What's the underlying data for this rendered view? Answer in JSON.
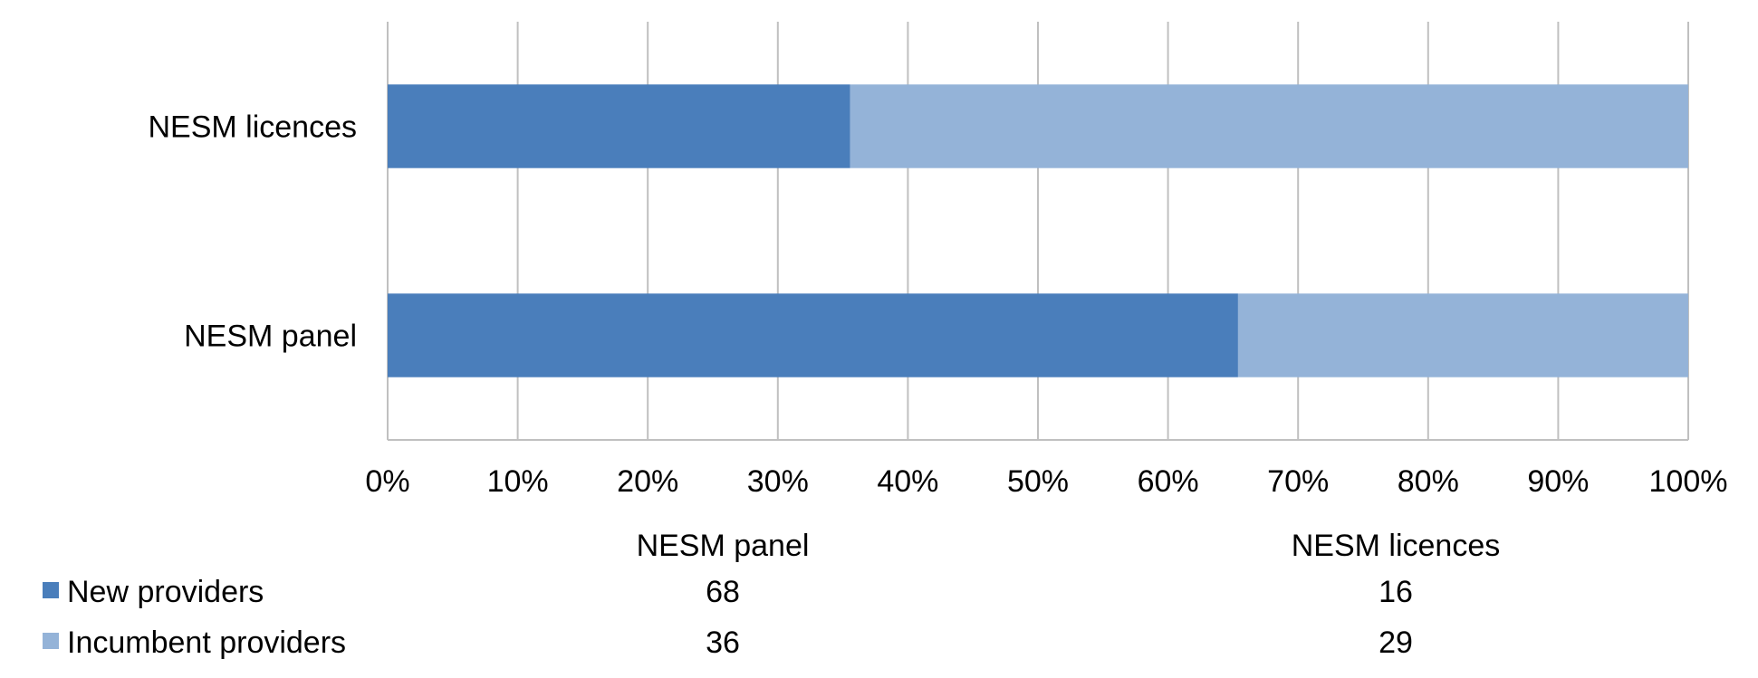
{
  "chart_data": {
    "type": "bar",
    "orientation": "horizontal",
    "stacking": "percent",
    "categories": [
      "NESM licences",
      "NESM panel"
    ],
    "series": [
      {
        "name": "New providers",
        "color": "#4a7ebb",
        "values_by_category": {
          "NESM panel": 68,
          "NESM licences": 16
        }
      },
      {
        "name": "Incumbent providers",
        "color": "#94b3d8",
        "values_by_category": {
          "NESM panel": 36,
          "NESM licences": 29
        }
      }
    ],
    "xaxis": {
      "ticks": [
        "0%",
        "10%",
        "20%",
        "30%",
        "40%",
        "50%",
        "60%",
        "70%",
        "80%",
        "90%",
        "100%"
      ],
      "range": [
        0,
        100
      ]
    },
    "grid": true,
    "data_table": {
      "columns": [
        "NESM panel",
        "NESM licences"
      ],
      "rows": [
        {
          "label": "New providers",
          "values": [
            "68",
            "16"
          ],
          "color": "#4a7ebb"
        },
        {
          "label": "Incumbent providers",
          "values": [
            "36",
            "29"
          ],
          "color": "#94b3d8"
        }
      ]
    }
  }
}
